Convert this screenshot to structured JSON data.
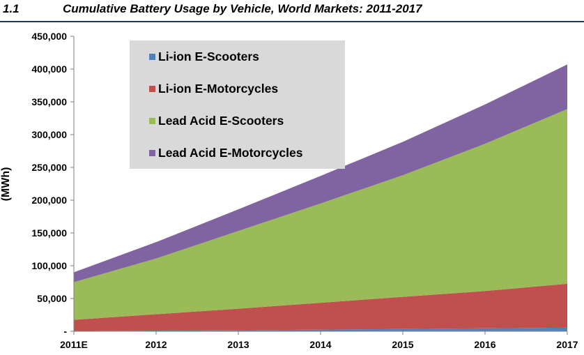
{
  "header": {
    "figure_number": "1.1",
    "title": "Cumulative Battery Usage by Vehicle, World Markets: 2011-2017"
  },
  "chart_data": {
    "type": "area",
    "stacked": true,
    "title": "Cumulative Battery Usage by Vehicle, World Markets: 2011-2017",
    "ylabel": "(MWh)",
    "xlabel": "",
    "categories": [
      "2011E",
      "2012",
      "2013",
      "2014",
      "2015",
      "2016",
      "2017"
    ],
    "ylim": [
      0,
      450000
    ],
    "yticks": [
      0,
      50000,
      100000,
      150000,
      200000,
      250000,
      300000,
      350000,
      400000,
      450000
    ],
    "ytick_labels": [
      "-",
      "50,000",
      "100,000",
      "150,000",
      "200,000",
      "250,000",
      "300,000",
      "350,000",
      "400,000",
      "450,000"
    ],
    "grid": false,
    "legend_position": "top-left",
    "series": [
      {
        "name": "Li-ion E-Scooters",
        "color": "#4f81bd",
        "values": [
          500,
          1000,
          1500,
          2500,
          3500,
          4500,
          5500
        ]
      },
      {
        "name": "Li-ion E-Motorcycles",
        "color": "#c0504d",
        "values": [
          17000,
          25000,
          33000,
          41000,
          49000,
          57000,
          67000
        ]
      },
      {
        "name": "Lead Acid E-Scooters",
        "color": "#9bbb59",
        "values": [
          57500,
          85000,
          118500,
          151500,
          185500,
          224500,
          266500
        ]
      },
      {
        "name": "Lead Acid E-Motorcycles",
        "color": "#8064a2",
        "values": [
          15000,
          25000,
          33000,
          42000,
          51000,
          60000,
          68000
        ]
      }
    ]
  }
}
